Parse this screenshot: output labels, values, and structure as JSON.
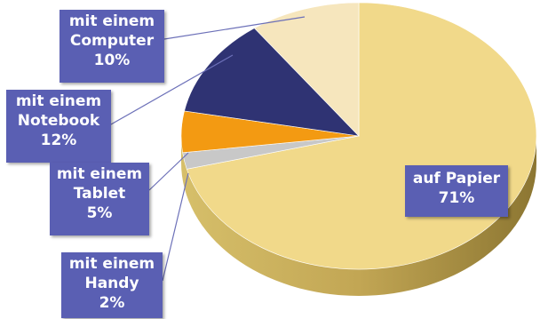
{
  "chart_data": {
    "type": "pie",
    "style": "3d",
    "slices": [
      {
        "name": "auf Papier",
        "value": 71,
        "lines": [
          "auf Papier",
          "71%"
        ],
        "color": "#f1d98a"
      },
      {
        "name": "mit einem Handy",
        "value": 2,
        "lines": [
          "mit einem",
          "Handy",
          "2%"
        ],
        "color": "#c8c8c8"
      },
      {
        "name": "mit einem Tablet",
        "value": 5,
        "lines": [
          "mit einem",
          "Tablet",
          "5%"
        ],
        "color": "#f39a12"
      },
      {
        "name": "mit einem Notebook",
        "value": 12,
        "lines": [
          "mit einem",
          "Notebook",
          "12%"
        ],
        "color": "#2f3373"
      },
      {
        "name": "mit einem Computer",
        "value": 10,
        "lines": [
          "mit einem",
          "Computer",
          "10%"
        ],
        "color": "#f6e6bd"
      }
    ],
    "label_fill": "#5a5fb3",
    "label_text_color": "#ffffff",
    "leader_line_color": "#6c70b8"
  }
}
